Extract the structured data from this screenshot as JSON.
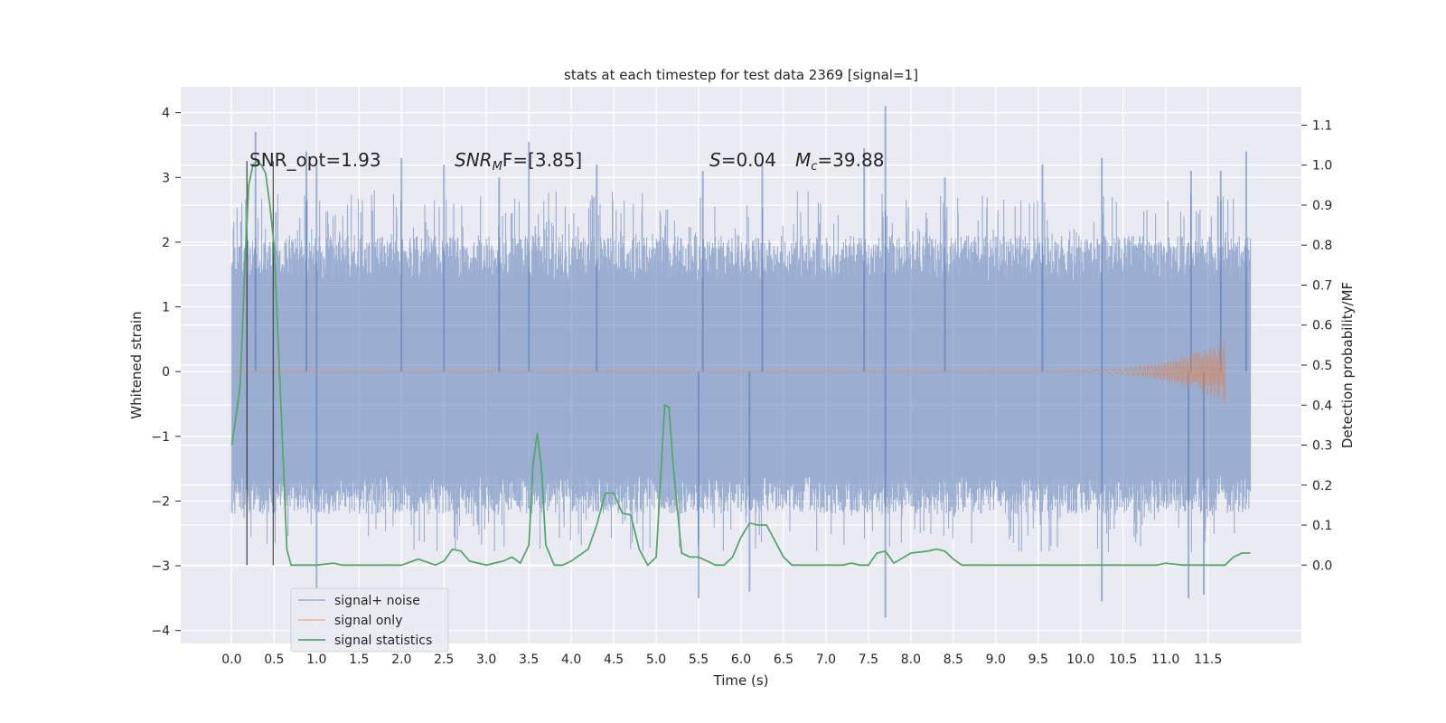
{
  "chart_data": {
    "type": "line",
    "title": "stats at each timestep for test data 2369 [signal=1]",
    "xlabel": "Time (s)",
    "ylabel": "Whitened strain",
    "y2label": "Detection probability/MF",
    "xlim": [
      -0.6,
      12.6
    ],
    "ylim": [
      -4.2,
      4.4
    ],
    "y2lim": [
      -0.196,
      1.196
    ],
    "x_ticks": [
      "0.0",
      "0.5",
      "1.0",
      "1.5",
      "2.0",
      "2.5",
      "3.0",
      "3.5",
      "4.0",
      "4.5",
      "5.0",
      "5.5",
      "6.0",
      "6.5",
      "7.0",
      "7.5",
      "8.0",
      "8.5",
      "9.0",
      "9.5",
      "10.0",
      "10.5",
      "11.0",
      "11.5"
    ],
    "y_ticks": [
      -4,
      -3,
      -2,
      -1,
      0,
      1,
      2,
      3,
      4
    ],
    "y2_ticks": [
      "0.0",
      "0.1",
      "0.2",
      "0.3",
      "0.4",
      "0.5",
      "0.6",
      "0.7",
      "0.8",
      "0.9",
      "1.0",
      "1.1"
    ],
    "grid": true,
    "legend_position": "lower-left",
    "legend": [
      "signal+ noise",
      "signal only",
      "signal statistics"
    ],
    "annotations": {
      "snr_opt": "SNR_opt=1.93",
      "snr_mf_base": "SNR",
      "snr_mf_sub": "M",
      "snr_mf_rest": "F=[3.85]",
      "s_label": "S",
      "s_value": "=0.04",
      "mc_base": "M",
      "mc_sub": "c",
      "mc_value": "=39.88"
    },
    "vertical_markers": [
      0.18,
      0.49
    ],
    "series": [
      {
        "name": "signal+ noise",
        "color": "#4c72b0",
        "x_range": [
          0.0,
          12.0
        ],
        "typical_range": [
          -1.6,
          1.4
        ],
        "peaks": [
          [
            0.28,
            3.7
          ],
          [
            0.88,
            3.4
          ],
          [
            1.0,
            3.25
          ],
          [
            2.0,
            3.3
          ],
          [
            2.5,
            3.2
          ],
          [
            3.15,
            3.0
          ],
          [
            3.5,
            3.55
          ],
          [
            4.3,
            3.2
          ],
          [
            5.55,
            3.1
          ],
          [
            6.25,
            3.2
          ],
          [
            7.45,
            3.45
          ],
          [
            7.7,
            4.1
          ],
          [
            8.4,
            3.0
          ],
          [
            9.55,
            3.2
          ],
          [
            10.25,
            3.3
          ],
          [
            11.3,
            3.1
          ],
          [
            11.65,
            3.1
          ],
          [
            11.95,
            3.4
          ],
          [
            1.0,
            -3.35
          ],
          [
            5.5,
            -3.5
          ],
          [
            6.1,
            -3.4
          ],
          [
            7.7,
            -3.8
          ],
          [
            10.25,
            -3.55
          ],
          [
            11.27,
            -3.5
          ],
          [
            11.45,
            -3.45
          ]
        ]
      },
      {
        "name": "signal only",
        "color": "#dd8452",
        "x_range": [
          0.0,
          11.7
        ],
        "chirp_start": 9.5,
        "chirp_end": 11.7,
        "chirp_peak_amplitude": 0.5
      },
      {
        "name": "signal statistics",
        "color": "#55a868",
        "axis": "right",
        "x": [
          0.0,
          0.05,
          0.1,
          0.15,
          0.2,
          0.25,
          0.3,
          0.35,
          0.4,
          0.45,
          0.5,
          0.55,
          0.6,
          0.65,
          0.7,
          0.8,
          1.0,
          1.2,
          1.3,
          1.5,
          1.8,
          2.0,
          2.2,
          2.4,
          2.5,
          2.6,
          2.7,
          2.8,
          3.0,
          3.2,
          3.3,
          3.4,
          3.5,
          3.55,
          3.6,
          3.65,
          3.7,
          3.8,
          3.9,
          4.0,
          4.2,
          4.3,
          4.4,
          4.5,
          4.6,
          4.7,
          4.8,
          4.9,
          5.0,
          5.1,
          5.15,
          5.2,
          5.3,
          5.4,
          5.5,
          5.6,
          5.7,
          5.8,
          5.9,
          6.0,
          6.1,
          6.2,
          6.3,
          6.4,
          6.5,
          6.6,
          6.8,
          7.0,
          7.2,
          7.3,
          7.4,
          7.5,
          7.6,
          7.7,
          7.8,
          8.0,
          8.2,
          8.3,
          8.4,
          8.5,
          8.6,
          8.8,
          9.0,
          9.5,
          10.0,
          10.5,
          10.9,
          11.0,
          11.2,
          11.5,
          11.7,
          11.8,
          11.9,
          12.0
        ],
        "y": [
          0.3,
          0.37,
          0.45,
          0.72,
          0.95,
          1.0,
          1.01,
          1.0,
          0.98,
          0.9,
          0.8,
          0.55,
          0.3,
          0.04,
          0.0,
          0.0,
          0.0,
          0.005,
          0.0,
          0.0,
          0.0,
          0.0,
          0.015,
          0.0,
          0.01,
          0.04,
          0.035,
          0.01,
          0.0,
          0.01,
          0.02,
          0.005,
          0.05,
          0.25,
          0.33,
          0.24,
          0.05,
          0.0,
          0.0,
          0.01,
          0.04,
          0.1,
          0.18,
          0.18,
          0.13,
          0.125,
          0.04,
          0.0,
          0.02,
          0.4,
          0.395,
          0.25,
          0.03,
          0.02,
          0.02,
          0.01,
          0.0,
          0.0,
          0.02,
          0.07,
          0.105,
          0.1,
          0.1,
          0.06,
          0.02,
          0.0,
          0.0,
          0.0,
          0.0,
          0.005,
          0.0,
          0.0,
          0.03,
          0.035,
          0.005,
          0.03,
          0.035,
          0.04,
          0.035,
          0.015,
          0.0,
          0.0,
          0.0,
          0.0,
          0.0,
          0.0,
          0.0,
          0.005,
          0.0,
          0.0,
          0.0,
          0.02,
          0.03,
          0.03
        ]
      }
    ]
  }
}
